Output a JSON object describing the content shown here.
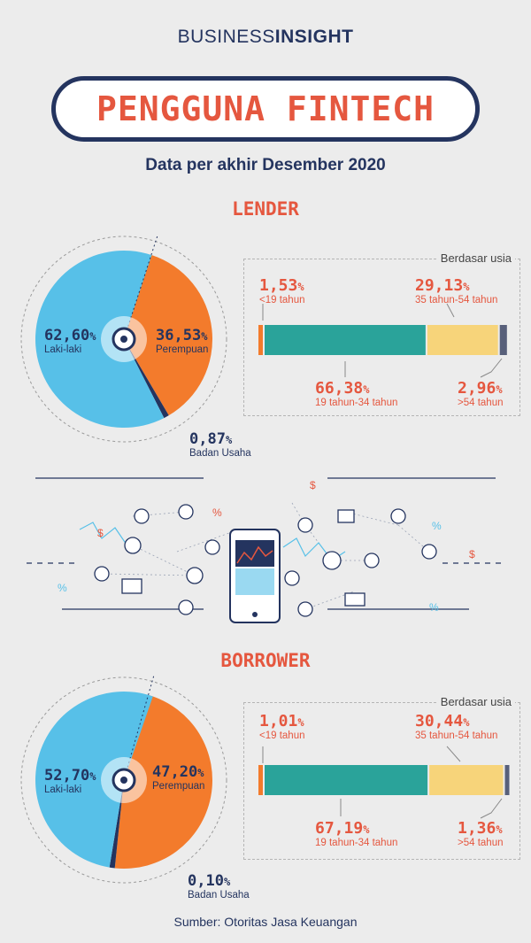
{
  "brand": {
    "prefix": "BUSINESS",
    "suffix": "INSIGHT"
  },
  "title": "PENGGUNA FINTECH",
  "subtitle": "Data per akhir Desember 2020",
  "source": "Sumber: Otoritas Jasa Keuangan",
  "colors": {
    "navy": "#24345f",
    "accent": "#e5573f",
    "blue": "#57c0e8",
    "orange": "#f37b2c",
    "teal": "#2aa39a",
    "yellow": "#f7d47a"
  },
  "chart_data": [
    {
      "type": "pie",
      "section": "LENDER",
      "slices": [
        {
          "value": "62,60",
          "unit": "%",
          "label": "Laki-laki",
          "num": 62.6,
          "color": "#57c0e8"
        },
        {
          "value": "36,53",
          "unit": "%",
          "label": "Perempuan",
          "num": 36.53,
          "color": "#f37b2c"
        },
        {
          "value": "0,87",
          "unit": "%",
          "label": "Badan Usaha",
          "num": 0.87,
          "color": "#24345f"
        }
      ],
      "age_caption": "Berdasar usia",
      "age_groups": [
        {
          "value": "1,53",
          "unit": "%",
          "label": "<19 tahun",
          "num": 1.53,
          "color": "#f37b2c"
        },
        {
          "value": "66,38",
          "unit": "%",
          "label": "19 tahun-34 tahun",
          "num": 66.38,
          "color": "#2aa39a"
        },
        {
          "value": "29,13",
          "unit": "%",
          "label": "35 tahun-54 tahun",
          "num": 29.13,
          "color": "#f7d47a"
        },
        {
          "value": "2,96",
          "unit": "%",
          "label": ">54 tahun",
          "num": 2.96,
          "color": "#58607a"
        }
      ]
    },
    {
      "type": "pie",
      "section": "BORROWER",
      "slices": [
        {
          "value": "52,70",
          "unit": "%",
          "label": "Laki-laki",
          "num": 52.7,
          "color": "#57c0e8"
        },
        {
          "value": "47,20",
          "unit": "%",
          "label": "Perempuan",
          "num": 47.2,
          "color": "#f37b2c"
        },
        {
          "value": "0,10",
          "unit": "%",
          "label": "Badan Usaha",
          "num": 0.1,
          "color": "#24345f"
        }
      ],
      "age_caption": "Berdasar usia",
      "age_groups": [
        {
          "value": "1,01",
          "unit": "%",
          "label": "<19 tahun",
          "num": 1.01,
          "color": "#f37b2c"
        },
        {
          "value": "67,19",
          "unit": "%",
          "label": "19 tahun-34 tahun",
          "num": 67.19,
          "color": "#2aa39a"
        },
        {
          "value": "30,44",
          "unit": "%",
          "label": "35 tahun-54 tahun",
          "num": 30.44,
          "color": "#f7d47a"
        },
        {
          "value": "1,36",
          "unit": "%",
          "label": ">54 tahun",
          "num": 1.36,
          "color": "#58607a"
        }
      ]
    }
  ]
}
